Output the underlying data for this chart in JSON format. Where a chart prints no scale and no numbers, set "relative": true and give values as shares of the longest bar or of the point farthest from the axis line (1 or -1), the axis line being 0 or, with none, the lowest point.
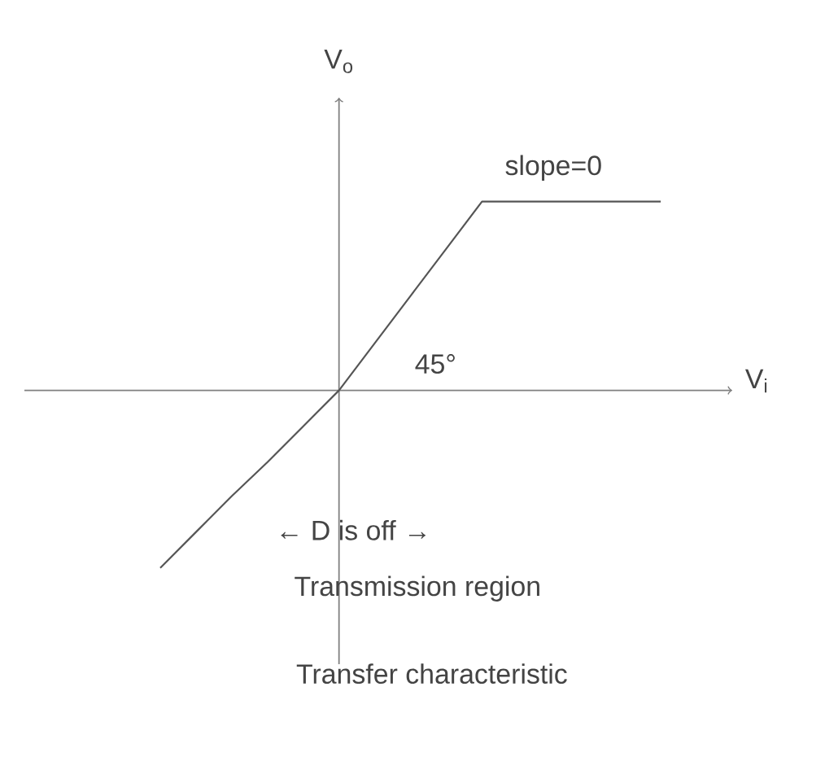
{
  "chart_data": {
    "type": "line",
    "relative": true,
    "xlabel": "V$_{i}$",
    "ylabel": "V$_{o}$",
    "categories": [
      null,
      null,
      null,
      null,
      null,
      null,
      null,
      null,
      null,
      null,
      null,
      null,
      null,
      null,
      null
    ],
    "series": [
      {
        "color": "#555555",
        "values": [
          -0.94,
          -0.75,
          -0.56,
          -0.38,
          -0.19,
          0,
          0.25,
          0.5,
          0.75,
          1,
          1,
          1,
          1,
          1,
          1
        ]
      }
    ],
    "annotations": [
      "slope=0",
      "45°",
      "← D is off →",
      "Transmission region",
      "Transfer characteristic"
    ],
    "marker": "none",
    "line_style": "solid"
  }
}
